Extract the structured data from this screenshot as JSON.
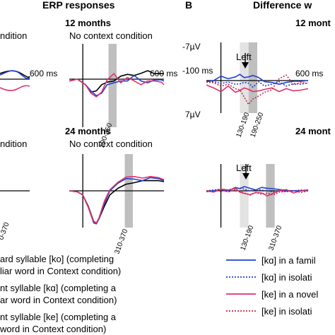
{
  "headers": {
    "left": "ERP responses",
    "panel_b_letter": "B",
    "right": "Difference w"
  },
  "rows": {
    "top": "12 months",
    "bottom": "24 months",
    "top_right": "12 mont",
    "bottom_right": "24 mont"
  },
  "conditions": {
    "context_fragment": "ndition",
    "no_context": "No context condition"
  },
  "labels": {
    "time_600": "600 ms",
    "time_minus100": "-100 ms",
    "volt_top": "-7µV",
    "volt_bottom": "7µV",
    "left_top": "Left",
    "left_bottom": "Left"
  },
  "windows": {
    "top_nocontext": "190-250",
    "bottom_left_fragment": "0-370",
    "bottom_nocontext": "310-370",
    "b_top_light": "130-190",
    "b_top_dark": "190-250",
    "b_bottom_light": "130-190",
    "b_bottom_dark": "310-370"
  },
  "legend_left": [
    {
      "line1": "ard syllable [ko] (completing",
      "line2": "liar word in Context condition)"
    },
    {
      "line1": "nt syllable [kɑ] (completing a",
      "line2": "ar word in Context condition)"
    },
    {
      "line1": "nt syllable [ke] (completing a",
      "line2": "word in Context condition)"
    }
  ],
  "legend_right": [
    {
      "label": "[kɑ] in a famil",
      "color": "#1f3fd0",
      "style": "solid"
    },
    {
      "label": "[kɑ] in isolati",
      "color": "#1f3fd0",
      "style": "dotted"
    },
    {
      "label": "[ke] in a novel",
      "color": "#e0306a",
      "style": "solid"
    },
    {
      "label": "[ke] in isolati",
      "color": "#c8284a",
      "style": "dotted"
    }
  ],
  "colors": {
    "black": "#000000",
    "blue": "#1f3fd0",
    "pink": "#e0306a",
    "darkred": "#c8284a",
    "shade_dark": "#bfbfbf",
    "shade_light": "#e3e3e3"
  },
  "chart_data": [
    {
      "type": "line",
      "panel": "12 months — No context condition",
      "title": "No context condition",
      "xlim": [
        -100,
        600
      ],
      "ylim": [
        -7,
        7
      ],
      "window": [
        190,
        250
      ],
      "x": [
        -100,
        -40,
        20,
        60,
        100,
        140,
        180,
        230,
        280,
        330,
        380,
        430,
        480,
        530,
        580,
        600
      ],
      "series": [
        {
          "color": "#000000",
          "values": [
            0.5,
            0.0,
            1.5,
            3.5,
            3.2,
            1.5,
            0.8,
            0.5,
            -0.8,
            -1.3,
            -1.0,
            -1.6,
            -2.3,
            -1.5,
            -1.5,
            -1.5
          ]
        },
        {
          "color": "#1f3fd0",
          "values": [
            0.5,
            0.0,
            1.5,
            3.2,
            4.5,
            3.8,
            1.5,
            1.0,
            0.5,
            0.5,
            -1.0,
            0.5,
            1.0,
            0.2,
            0.2,
            0.5
          ]
        },
        {
          "color": "#e0306a",
          "values": [
            0.5,
            0.0,
            1.5,
            3.8,
            4.8,
            3.5,
            0.2,
            -1.5,
            1.0,
            -0.5,
            0.5,
            1.5,
            0.5,
            0.5,
            0.8,
            1.5
          ]
        }
      ]
    },
    {
      "type": "line",
      "panel": "24 months — No context condition",
      "title": "No context condition",
      "xlim": [
        -100,
        600
      ],
      "ylim": [
        -7,
        7
      ],
      "window": [
        310,
        370
      ],
      "x": [
        -100,
        -40,
        0,
        40,
        80,
        100,
        120,
        160,
        200,
        260,
        320,
        380,
        440,
        500,
        560,
        600
      ],
      "series": [
        {
          "color": "#000000",
          "values": [
            0.0,
            0.2,
            0.8,
            3.0,
            6.0,
            6.3,
            5.5,
            3.0,
            0.8,
            -0.5,
            -1.3,
            -1.6,
            -2.0,
            -2.0,
            -2.0,
            -1.8
          ]
        },
        {
          "color": "#1f3fd0",
          "values": [
            0.0,
            0.2,
            0.8,
            3.2,
            6.3,
            6.5,
            5.5,
            2.5,
            0.0,
            -1.5,
            -2.4,
            -2.3,
            -2.0,
            -2.6,
            -2.4,
            -2.0
          ]
        },
        {
          "color": "#e0306a",
          "values": [
            0.0,
            0.2,
            0.8,
            3.2,
            6.1,
            6.3,
            5.3,
            2.0,
            -0.2,
            -1.7,
            -2.7,
            -2.8,
            -2.5,
            -2.8,
            -2.6,
            -2.2
          ]
        }
      ]
    },
    {
      "type": "line",
      "panel": "B 12 months — Left",
      "title": "Left",
      "xlim": [
        -100,
        600
      ],
      "ylim": [
        -7,
        7
      ],
      "windows": [
        [
          130,
          190
        ],
        [
          190,
          250
        ]
      ],
      "x": [
        -100,
        -50,
        0,
        50,
        100,
        130,
        160,
        190,
        220,
        260,
        300,
        350,
        400,
        450,
        500,
        550,
        600
      ],
      "series": [
        {
          "color": "#1f3fd0",
          "style": "solid",
          "values": [
            0.3,
            0.0,
            -1.2,
            -0.5,
            -1.0,
            -1.7,
            -0.8,
            -1.0,
            -1.4,
            -0.8,
            0.3,
            0.5,
            1.0,
            0.5,
            0.2,
            0.2,
            0.0
          ]
        },
        {
          "color": "#1f3fd0",
          "style": "dotted",
          "values": [
            0.2,
            0.3,
            0.8,
            0.4,
            1.0,
            0.9,
            0.5,
            0.7,
            1.8,
            0.3,
            1.5,
            1.0,
            0.3,
            1.5,
            0.8,
            1.0,
            0.6
          ]
        },
        {
          "color": "#e0306a",
          "style": "solid",
          "values": [
            1.2,
            2.0,
            3.0,
            1.5,
            3.2,
            2.7,
            2.0,
            2.4,
            3.0,
            2.8,
            2.4,
            2.0,
            3.0,
            2.2,
            2.8,
            2.6,
            2.2
          ]
        },
        {
          "color": "#c8284a",
          "style": "dotted",
          "values": [
            0.4,
            0.6,
            1.5,
            1.0,
            2.2,
            2.5,
            4.5,
            6.5,
            5.0,
            4.2,
            3.2,
            2.5,
            -0.5,
            -1.5,
            1.2,
            0.5,
            0.8
          ]
        }
      ]
    },
    {
      "type": "line",
      "panel": "B 24 months — Left",
      "title": "Left",
      "xlim": [
        -100,
        600
      ],
      "ylim": [
        -7,
        7
      ],
      "windows": [
        [
          130,
          190
        ],
        [
          310,
          370
        ]
      ],
      "x": [
        -100,
        -50,
        0,
        50,
        100,
        130,
        160,
        200,
        240,
        280,
        320,
        360,
        400,
        450,
        500,
        550,
        600
      ],
      "series": [
        {
          "color": "#1f3fd0",
          "style": "solid",
          "values": [
            0.2,
            0.0,
            -0.3,
            0.0,
            -0.8,
            -0.5,
            -1.0,
            -0.6,
            -0.2,
            -0.8,
            -0.6,
            -0.5,
            -0.3,
            -0.1,
            0.0,
            0.0,
            -0.2
          ]
        },
        {
          "color": "#1f3fd0",
          "style": "dotted",
          "values": [
            0.0,
            -0.2,
            -0.4,
            -0.2,
            -0.5,
            -0.7,
            -0.4,
            0.0,
            -0.3,
            -0.2,
            0.0,
            0.3,
            -0.2,
            0.2,
            0.0,
            -0.2,
            -0.1
          ]
        },
        {
          "color": "#e0306a",
          "style": "solid",
          "values": [
            0.0,
            0.3,
            -0.4,
            -0.2,
            -0.6,
            0.3,
            0.6,
            0.9,
            0.4,
            0.5,
            1.2,
            0.6,
            0.0,
            -0.3,
            0.5,
            0.0,
            0.0
          ]
        },
        {
          "color": "#c8284a",
          "style": "dotted",
          "values": [
            0.1,
            0.2,
            -0.2,
            0.3,
            -0.3,
            0.2,
            0.5,
            1.0,
            0.4,
            0.8,
            0.5,
            1.0,
            0.3,
            0.2,
            0.0,
            0.4,
            0.0
          ]
        }
      ]
    }
  ]
}
